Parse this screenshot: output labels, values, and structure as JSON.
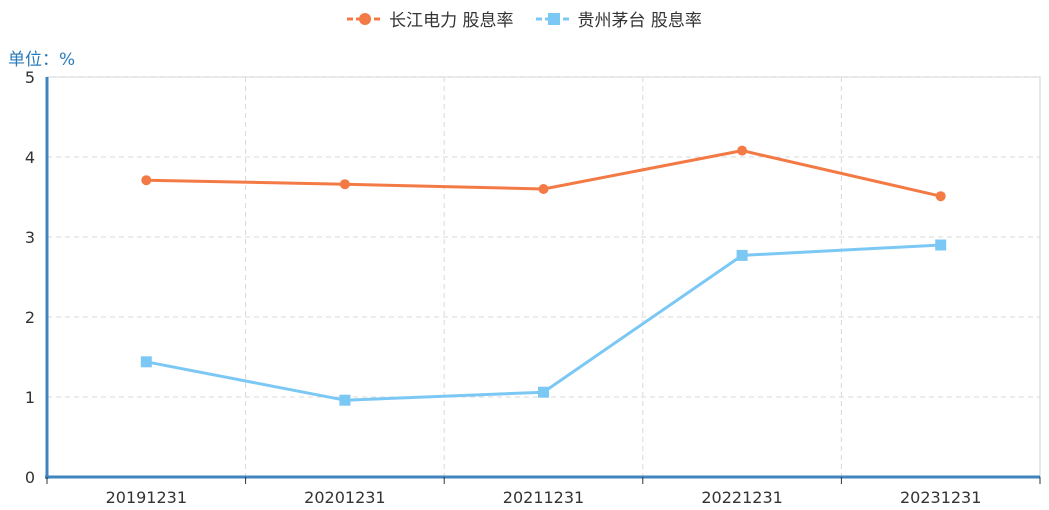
{
  "legend": [
    {
      "label": "长江电力 股息率",
      "color": "#f47a45",
      "marker": "circle"
    },
    {
      "label": "贵州茅台 股息率",
      "color": "#7cc8f4",
      "marker": "square"
    }
  ],
  "unit_label": "单位：%",
  "chart_data": {
    "type": "line",
    "categories": [
      "20191231",
      "20201231",
      "20211231",
      "20221231",
      "20231231"
    ],
    "series": [
      {
        "name": "长江电力 股息率",
        "color": "#f47a45",
        "values": [
          3.71,
          3.66,
          3.6,
          4.08,
          3.51
        ]
      },
      {
        "name": "贵州茅台 股息率",
        "color": "#7cc8f4",
        "values": [
          1.44,
          0.96,
          1.06,
          2.77,
          2.9
        ]
      }
    ],
    "ylim": [
      0,
      5
    ],
    "yticks": [
      0,
      1,
      2,
      3,
      4,
      5
    ],
    "grid": true,
    "legend_position": "top-center",
    "axis_color": "#3f84bf",
    "grid_color": "#d8d8d8"
  }
}
